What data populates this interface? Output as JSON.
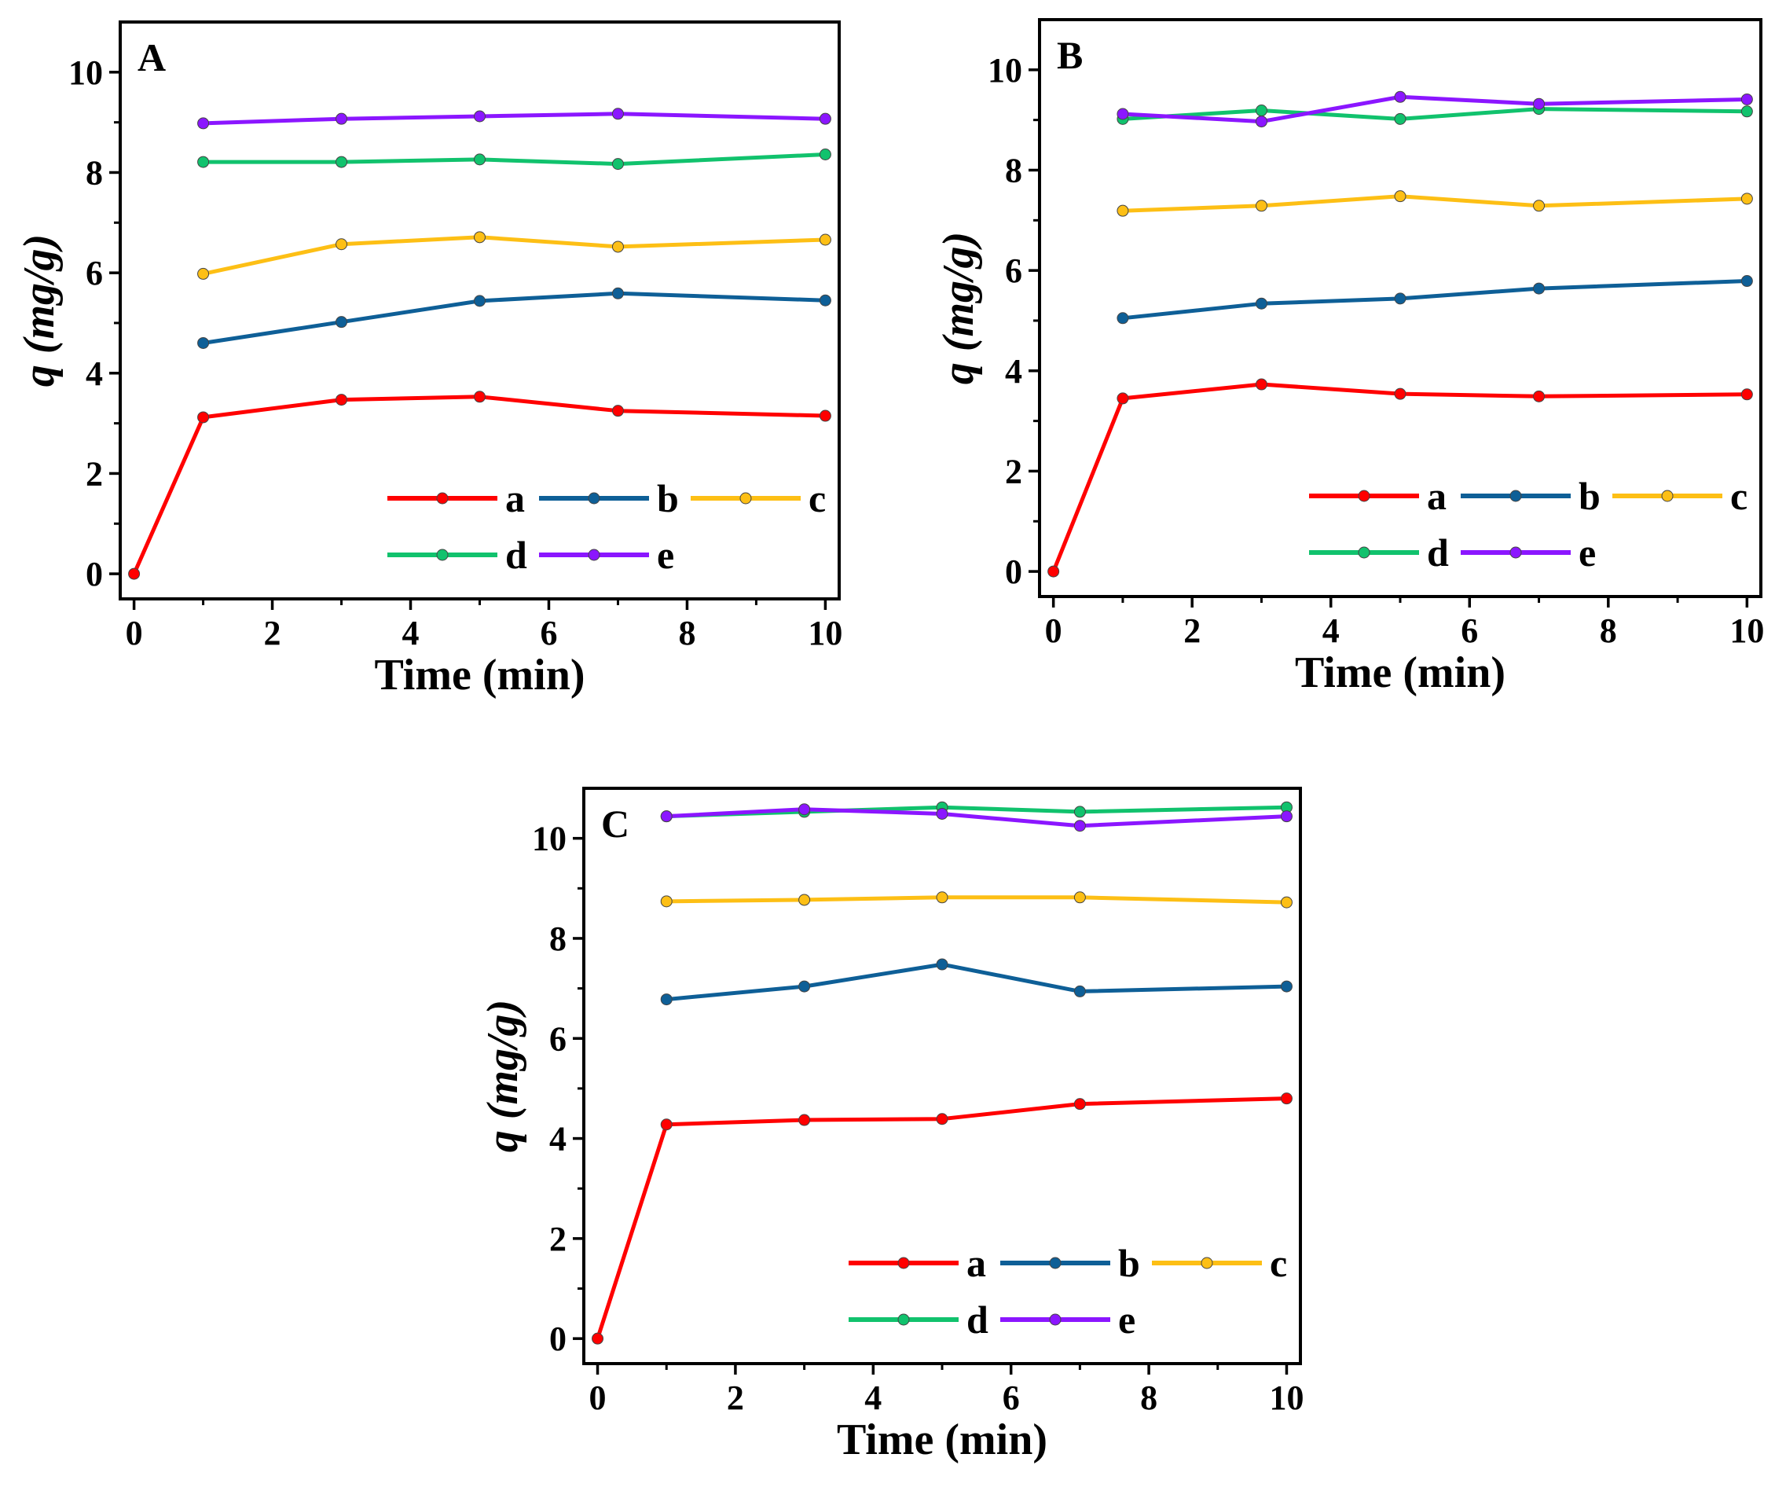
{
  "chart_data": [
    {
      "type": "line",
      "panel_label": "A",
      "xlabel": "Time (min)",
      "ylabel_var": "q",
      "ylabel_unit": "(mg/g)",
      "xlim": [
        -0.2,
        10.2
      ],
      "ylim": [
        -0.5,
        11
      ],
      "xticks": [
        0,
        2,
        4,
        6,
        8,
        10
      ],
      "yticks": [
        0,
        2,
        4,
        6,
        8,
        10
      ],
      "legend": "bottom-right",
      "series": [
        {
          "name": "a",
          "color": "#ff0000",
          "x": [
            0,
            1,
            3,
            5,
            7,
            10
          ],
          "values": [
            0,
            3.12,
            3.47,
            3.53,
            3.25,
            3.15
          ]
        },
        {
          "name": "b",
          "color": "#0e5f97",
          "x": [
            1,
            3,
            5,
            7,
            10
          ],
          "values": [
            4.6,
            5.02,
            5.44,
            5.59,
            5.45
          ]
        },
        {
          "name": "c",
          "color": "#fdbf15",
          "x": [
            1,
            3,
            5,
            7,
            10
          ],
          "values": [
            5.98,
            6.57,
            6.71,
            6.52,
            6.66
          ]
        },
        {
          "name": "d",
          "color": "#11c26d",
          "x": [
            1,
            3,
            5,
            7,
            10
          ],
          "values": [
            8.21,
            8.21,
            8.26,
            8.17,
            8.36
          ]
        },
        {
          "name": "e",
          "color": "#8b16ff",
          "x": [
            1,
            3,
            5,
            7,
            10
          ],
          "values": [
            8.98,
            9.07,
            9.12,
            9.17,
            9.07
          ]
        }
      ]
    },
    {
      "type": "line",
      "panel_label": "B",
      "xlabel": "Time (min)",
      "ylabel_var": "q",
      "ylabel_unit": "(mg/g)",
      "xlim": [
        -0.2,
        10.2
      ],
      "ylim": [
        -0.5,
        11
      ],
      "xticks": [
        0,
        2,
        4,
        6,
        8,
        10
      ],
      "yticks": [
        0,
        2,
        4,
        6,
        8,
        10
      ],
      "legend": "bottom-right",
      "series": [
        {
          "name": "a",
          "color": "#ff0000",
          "x": [
            0,
            1,
            3,
            5,
            7,
            10
          ],
          "values": [
            0,
            3.45,
            3.73,
            3.54,
            3.49,
            3.53
          ]
        },
        {
          "name": "b",
          "color": "#0e5f97",
          "x": [
            1,
            3,
            5,
            7,
            10
          ],
          "values": [
            5.05,
            5.34,
            5.44,
            5.64,
            5.79
          ]
        },
        {
          "name": "c",
          "color": "#fdbf15",
          "x": [
            1,
            3,
            5,
            7,
            10
          ],
          "values": [
            7.19,
            7.29,
            7.48,
            7.29,
            7.43
          ]
        },
        {
          "name": "d",
          "color": "#11c26d",
          "x": [
            1,
            3,
            5,
            7,
            10
          ],
          "values": [
            9.02,
            9.19,
            9.02,
            9.22,
            9.17
          ]
        },
        {
          "name": "e",
          "color": "#8b16ff",
          "x": [
            1,
            3,
            5,
            7,
            10
          ],
          "values": [
            9.12,
            8.97,
            9.46,
            9.32,
            9.41
          ]
        }
      ]
    },
    {
      "type": "line",
      "panel_label": "C",
      "xlabel": "Time (min)",
      "ylabel_var": "q",
      "ylabel_unit": "(mg/g)",
      "xlim": [
        -0.2,
        10.2
      ],
      "ylim": [
        -0.5,
        11
      ],
      "xticks": [
        0,
        2,
        4,
        6,
        8,
        10
      ],
      "yticks": [
        0,
        2,
        4,
        6,
        8,
        10
      ],
      "legend": "bottom-right",
      "series": [
        {
          "name": "a",
          "color": "#ff0000",
          "x": [
            0,
            1,
            3,
            5,
            7,
            10
          ],
          "values": [
            0,
            4.28,
            4.37,
            4.39,
            4.69,
            4.8
          ]
        },
        {
          "name": "b",
          "color": "#0e5f97",
          "x": [
            1,
            3,
            5,
            7,
            10
          ],
          "values": [
            6.78,
            7.04,
            7.48,
            6.94,
            7.04
          ]
        },
        {
          "name": "c",
          "color": "#fdbf15",
          "x": [
            1,
            3,
            5,
            7,
            10
          ],
          "values": [
            8.74,
            8.77,
            8.82,
            8.82,
            8.72
          ]
        },
        {
          "name": "d",
          "color": "#11c26d",
          "x": [
            1,
            3,
            5,
            7,
            10
          ],
          "values": [
            10.44,
            10.53,
            10.62,
            10.53,
            10.62
          ]
        },
        {
          "name": "e",
          "color": "#8b16ff",
          "x": [
            1,
            3,
            5,
            7,
            10
          ],
          "values": [
            10.44,
            10.58,
            10.49,
            10.25,
            10.44
          ]
        }
      ]
    }
  ]
}
